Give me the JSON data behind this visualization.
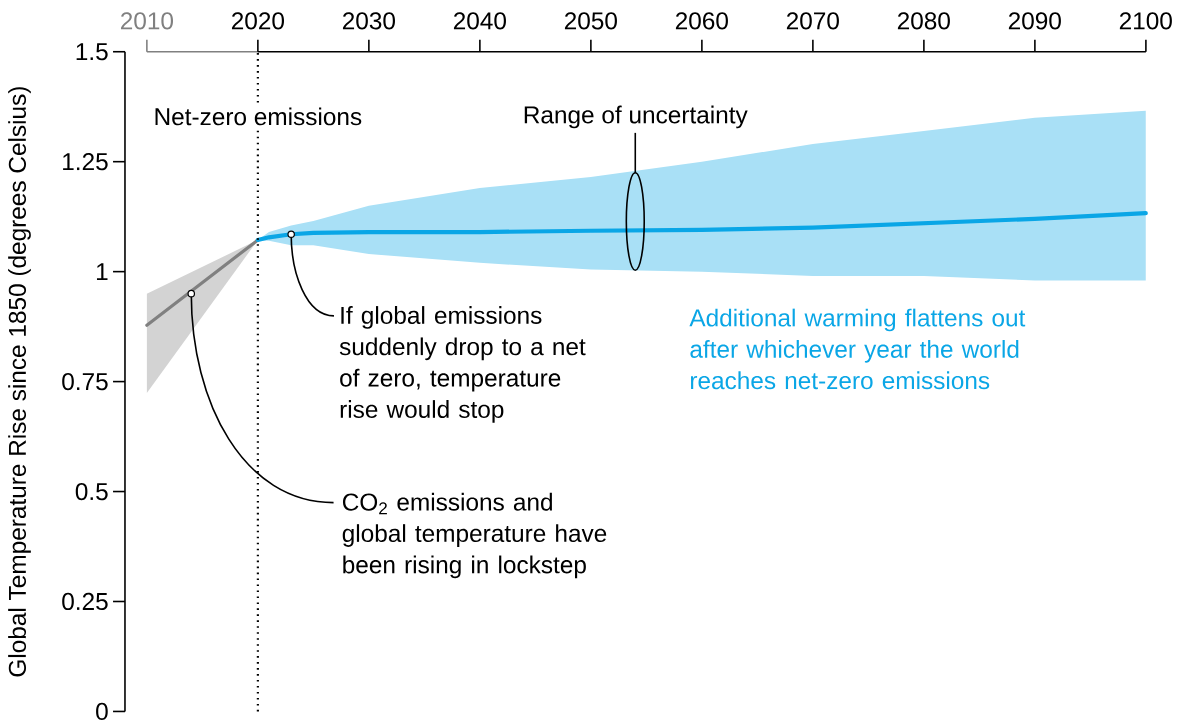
{
  "chart_data": {
    "type": "line",
    "ylabel": "Global Temperature Rise since 1850 (degrees Celsius)",
    "xlim": [
      2010,
      2100
    ],
    "xticks": [
      2010,
      2020,
      2030,
      2040,
      2050,
      2060,
      2070,
      2080,
      2090,
      2100
    ],
    "ylim": [
      0,
      1.5
    ],
    "yticks": [
      0,
      0.25,
      0.5,
      0.75,
      1,
      1.25,
      1.5
    ],
    "series": [
      {
        "color": "#808080",
        "x": [
          2010,
          2020
        ],
        "values": [
          0.878,
          1.072
        ],
        "lower": [
          0.724,
          1.072
        ],
        "upper": [
          0.95,
          1.072
        ]
      },
      {
        "color": "#0aa6e6",
        "x": [
          2020,
          2021,
          2023,
          2025,
          2030,
          2040,
          2050,
          2060,
          2070,
          2080,
          2090,
          2100
        ],
        "values": [
          1.072,
          1.078,
          1.085,
          1.088,
          1.09,
          1.09,
          1.093,
          1.095,
          1.1,
          1.11,
          1.12,
          1.133
        ],
        "upper": [
          1.072,
          1.09,
          1.105,
          1.115,
          1.15,
          1.19,
          1.215,
          1.25,
          1.29,
          1.32,
          1.35,
          1.366
        ],
        "lower": [
          1.07,
          1.07,
          1.06,
          1.06,
          1.04,
          1.02,
          1.005,
          1.0,
          0.99,
          0.99,
          0.98,
          0.98
        ]
      }
    ],
    "ref_lines": [
      {
        "axis": "x",
        "value": 2020,
        "label": "Net-zero emissions",
        "line_style": "dotted",
        "color": "#000000"
      }
    ],
    "annotations": [
      {
        "text": "Range of uncertainty",
        "x": 2054,
        "y": 1.225
      },
      {
        "text": "If global emissions suddenly drop to a net of zero, temperature rise would stop",
        "x": 2023,
        "y": 1.085
      },
      {
        "text": "CO$_{2}$ emissions and global temperature have been rising in lockstep",
        "x": 2014,
        "y": 0.95
      },
      "Additional warming flattens out after whichever year the world reaches net-zero emissions"
    ]
  }
}
